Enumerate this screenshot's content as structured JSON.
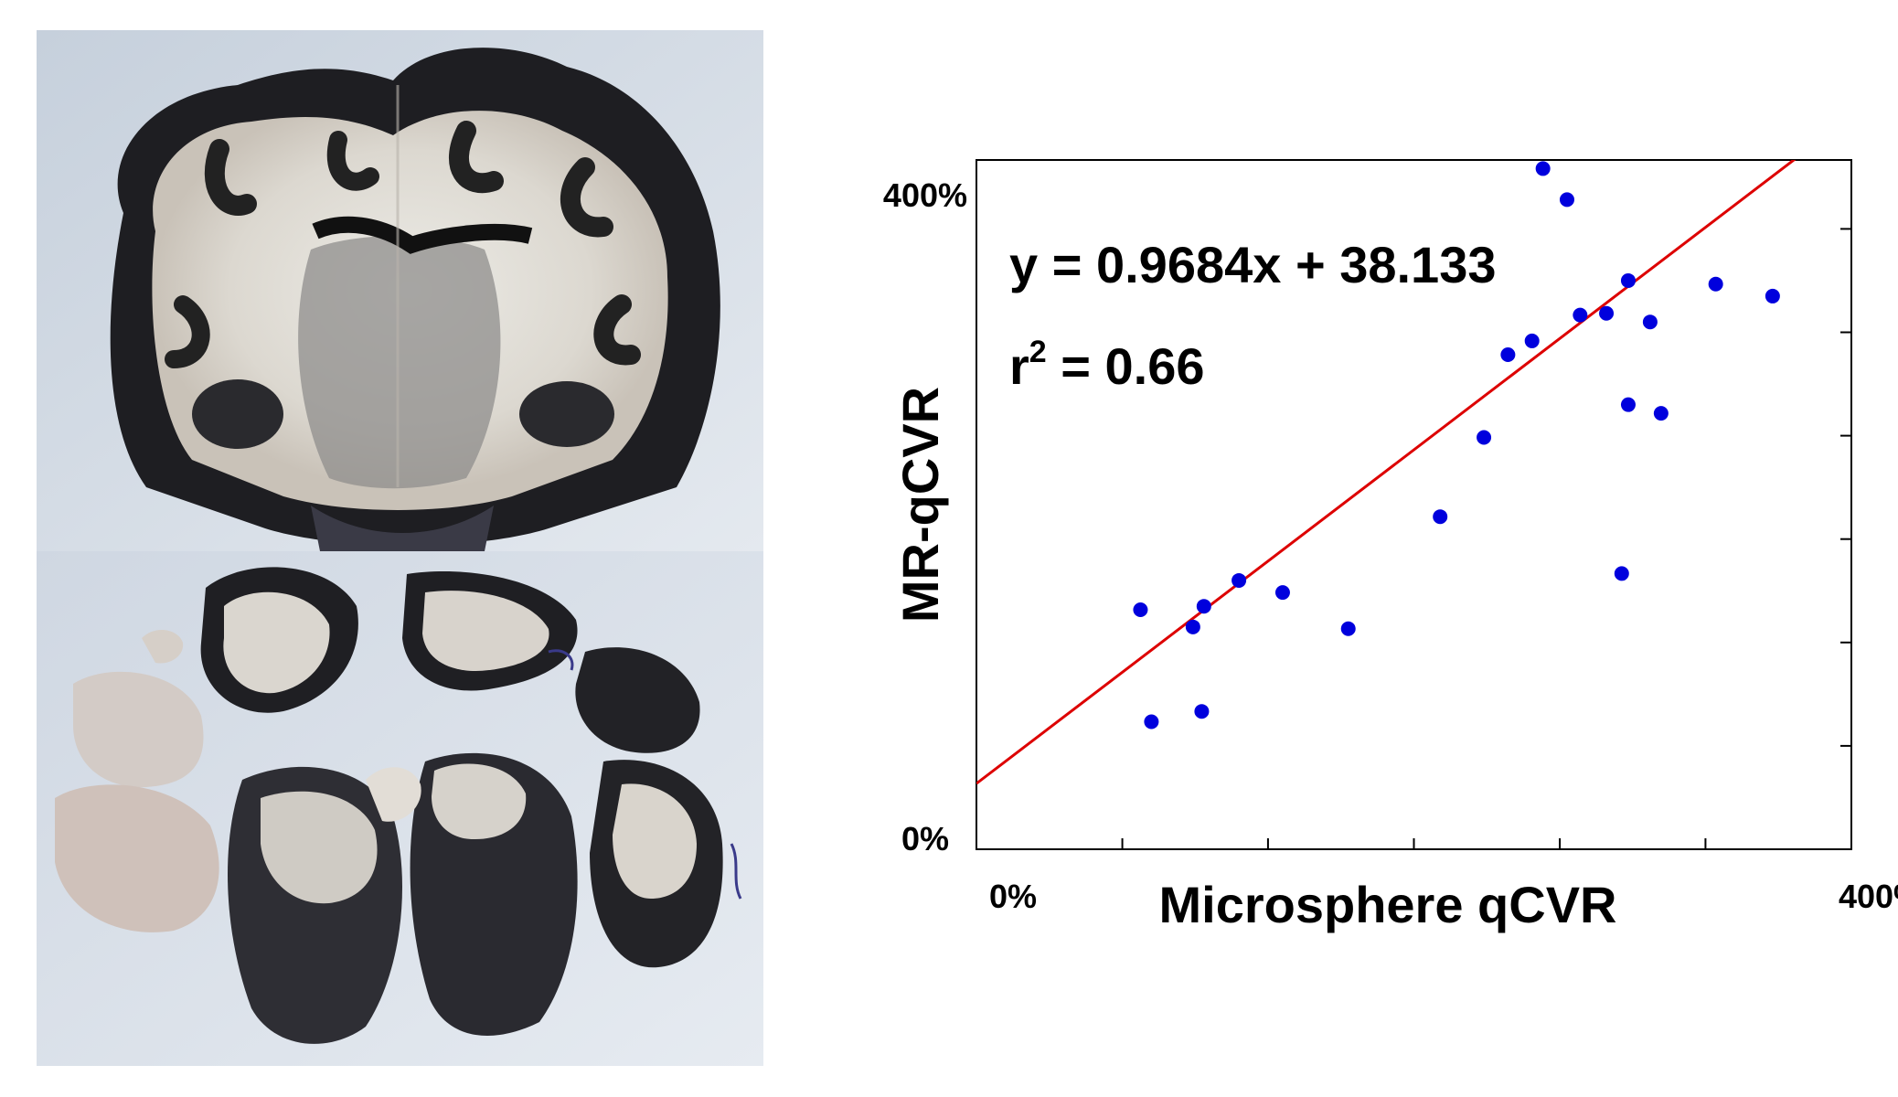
{
  "chart_data": {
    "type": "scatter",
    "title": "",
    "xlabel": "Microsphere qCVR",
    "ylabel": "MR-qCVR",
    "xlim": [
      0,
      400
    ],
    "ylim": [
      0,
      400
    ],
    "x_ticks": [
      0,
      66.7,
      133.3,
      200,
      266.7,
      333.3,
      400
    ],
    "y_ticks": [
      0,
      60,
      120,
      180,
      240,
      300,
      360,
      400
    ],
    "x_tick_labels": {
      "min": "0%",
      "max": "400%"
    },
    "y_tick_labels": {
      "min": "0%",
      "max": "400%"
    },
    "grid": false,
    "series": [
      {
        "color": "#0000dd",
        "points": [
          {
            "x": 75,
            "y": 139
          },
          {
            "x": 80,
            "y": 74
          },
          {
            "x": 99,
            "y": 129
          },
          {
            "x": 104,
            "y": 141
          },
          {
            "x": 103,
            "y": 80
          },
          {
            "x": 120,
            "y": 156
          },
          {
            "x": 140,
            "y": 149
          },
          {
            "x": 170,
            "y": 128
          },
          {
            "x": 212,
            "y": 193
          },
          {
            "x": 232,
            "y": 239
          },
          {
            "x": 243,
            "y": 287
          },
          {
            "x": 254,
            "y": 295
          },
          {
            "x": 259,
            "y": 395
          },
          {
            "x": 270,
            "y": 377
          },
          {
            "x": 276,
            "y": 310
          },
          {
            "x": 288,
            "y": 311
          },
          {
            "x": 295,
            "y": 160
          },
          {
            "x": 298,
            "y": 258
          },
          {
            "x": 298,
            "y": 330
          },
          {
            "x": 308,
            "y": 306
          },
          {
            "x": 313,
            "y": 253
          },
          {
            "x": 338,
            "y": 328
          },
          {
            "x": 364,
            "y": 321
          }
        ]
      }
    ],
    "fit_line": {
      "slope": 0.9684,
      "intercept": 38.133,
      "color": "#dd0000"
    },
    "annotations": {
      "equation": "y = 0.9684x + 38.133",
      "r2_prefix": "r",
      "r2_sup": "2",
      "r2_suffix": " = 0.66"
    }
  }
}
